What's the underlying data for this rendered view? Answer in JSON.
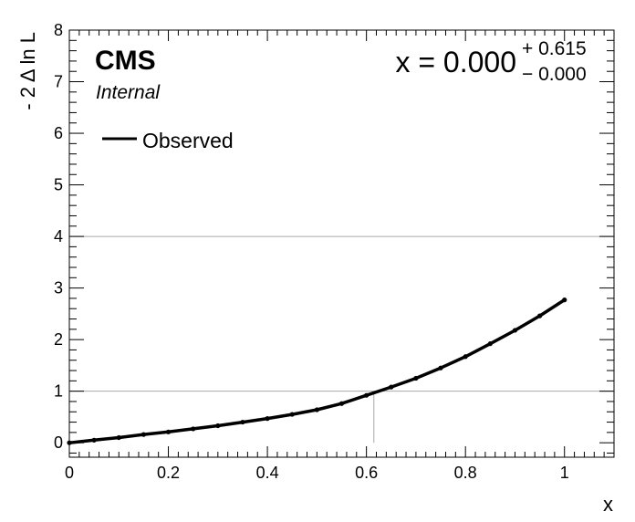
{
  "chart_data": {
    "type": "line",
    "xlabel": "x",
    "ylabel": "- 2 Δ ln L",
    "xlim": [
      0,
      1.1
    ],
    "ylim": [
      -0.28,
      8
    ],
    "x_ticks": [
      0,
      0.2,
      0.4,
      0.6,
      0.8,
      1
    ],
    "x_tick_labels": [
      "0",
      "0.2",
      "0.4",
      "0.6",
      "0.8",
      "1"
    ],
    "y_ticks": [
      0,
      1,
      2,
      3,
      4,
      5,
      6,
      7,
      8
    ],
    "y_tick_labels": [
      "0",
      "1",
      "2",
      "3",
      "4",
      "5",
      "6",
      "7",
      "8"
    ],
    "reference_lines_y": [
      1,
      4
    ],
    "crossing_marker_x": 0.615,
    "experiment_label": "CMS",
    "status_label": "Internal",
    "result": {
      "prefix": "x = 0.000",
      "up": "+ 0.615",
      "down": "− 0.000"
    },
    "legend": {
      "position": "top-left",
      "entries": [
        "Observed"
      ]
    },
    "series": [
      {
        "name": "Observed",
        "color": "#000000",
        "x": [
          0,
          0.05,
          0.1,
          0.15,
          0.2,
          0.25,
          0.3,
          0.35,
          0.4,
          0.45,
          0.5,
          0.55,
          0.6,
          0.65,
          0.7,
          0.75,
          0.8,
          0.85,
          0.9,
          0.95,
          1.0
        ],
        "y": [
          0,
          0.05,
          0.1,
          0.16,
          0.21,
          0.27,
          0.33,
          0.4,
          0.47,
          0.55,
          0.64,
          0.76,
          0.92,
          1.08,
          1.25,
          1.45,
          1.67,
          1.92,
          2.18,
          2.46,
          2.77
        ]
      }
    ]
  }
}
